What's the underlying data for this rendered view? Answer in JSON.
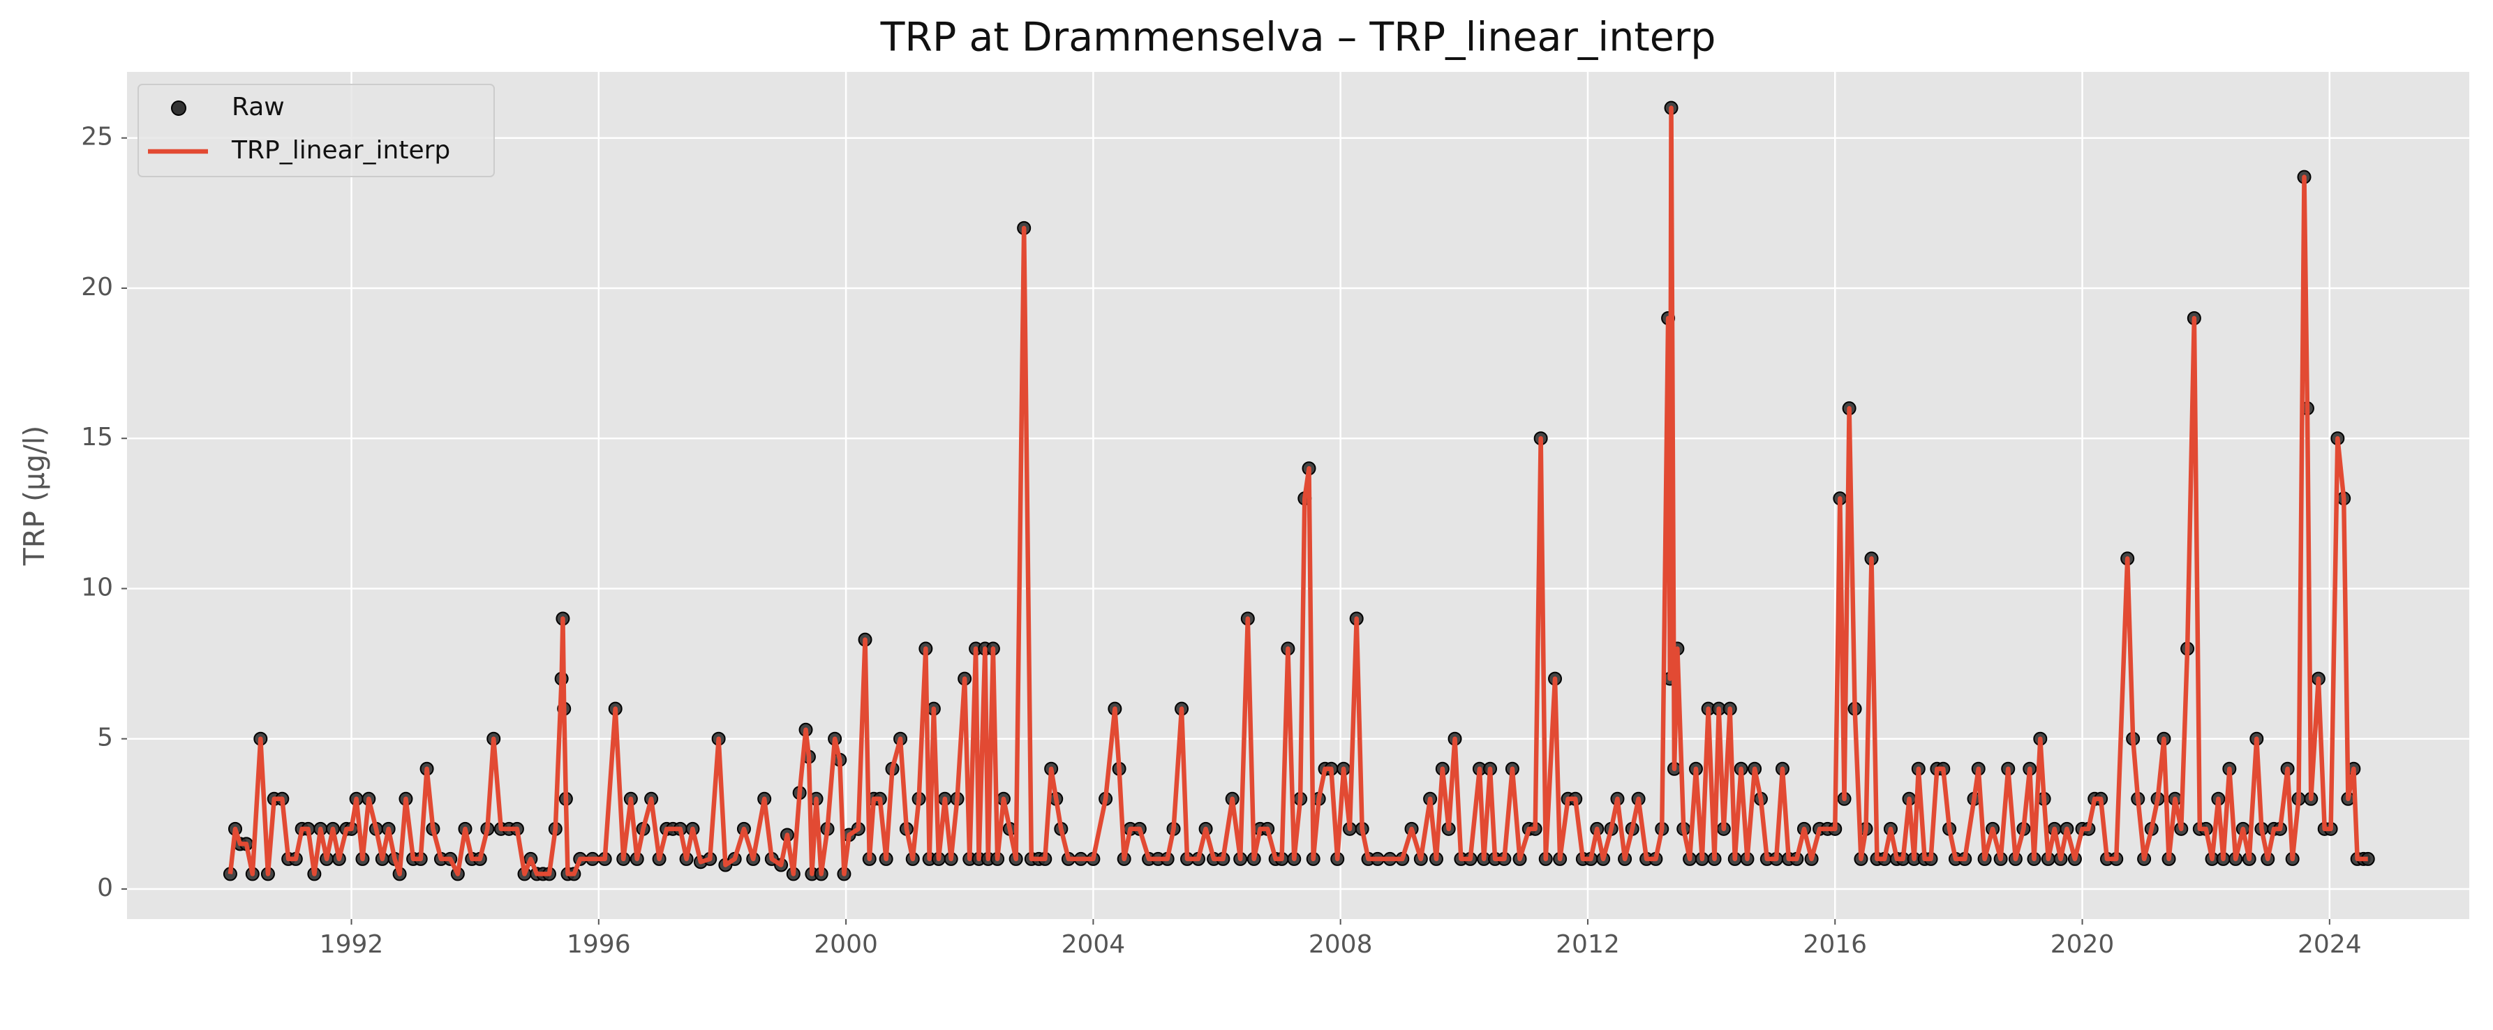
{
  "chart_data": {
    "type": "line",
    "title": "TRP at Drammenselva – TRP_linear_interp",
    "y_label": "TRP (µg/l)",
    "xlim": [
      1988.37,
      2026.26
    ],
    "xticks": [
      1992,
      1996,
      2000,
      2004,
      2008,
      2012,
      2016,
      2020,
      2024
    ],
    "ylim": [
      -1.0,
      27.2
    ],
    "yticks": [
      0,
      5,
      10,
      15,
      20,
      25
    ],
    "grid": true,
    "legend": "upper left",
    "x": [
      1990.04,
      1990.12,
      1990.2,
      1990.3,
      1990.4,
      1990.53,
      1990.65,
      1990.75,
      1990.88,
      1990.98,
      1991.1,
      1991.2,
      1991.3,
      1991.4,
      1991.5,
      1991.6,
      1991.7,
      1991.8,
      1991.92,
      1992.0,
      1992.08,
      1992.18,
      1992.28,
      1992.4,
      1992.5,
      1992.6,
      1992.7,
      1992.78,
      1992.88,
      1993.0,
      1993.12,
      1993.22,
      1993.32,
      1993.45,
      1993.6,
      1993.72,
      1993.84,
      1993.95,
      1994.08,
      1994.2,
      1994.3,
      1994.42,
      1994.55,
      1994.68,
      1994.8,
      1994.9,
      1995.0,
      1995.1,
      1995.2,
      1995.3,
      1995.4,
      1995.42,
      1995.44,
      1995.47,
      1995.5,
      1995.6,
      1995.7,
      1995.9,
      1996.1,
      1996.27,
      1996.4,
      1996.52,
      1996.62,
      1996.72,
      1996.85,
      1996.98,
      1997.1,
      1997.2,
      1997.32,
      1997.42,
      1997.52,
      1997.65,
      1997.8,
      1997.94,
      1998.05,
      1998.2,
      1998.35,
      1998.5,
      1998.68,
      1998.8,
      1998.95,
      1999.05,
      1999.15,
      1999.25,
      1999.35,
      1999.4,
      1999.45,
      1999.52,
      1999.6,
      1999.7,
      1999.82,
      1999.9,
      1999.97,
      2000.05,
      2000.2,
      2000.31,
      2000.38,
      2000.45,
      2000.55,
      2000.65,
      2000.75,
      2000.88,
      2000.98,
      2001.08,
      2001.18,
      2001.29,
      2001.35,
      2001.42,
      2001.5,
      2001.6,
      2001.7,
      2001.8,
      2001.92,
      2002.0,
      2002.1,
      2002.15,
      2002.25,
      2002.3,
      2002.38,
      2002.45,
      2002.55,
      2002.65,
      2002.75,
      2002.88,
      2003.0,
      2003.12,
      2003.22,
      2003.32,
      2003.4,
      2003.48,
      2003.6,
      2003.8,
      2004.0,
      2004.2,
      2004.35,
      2004.42,
      2004.5,
      2004.6,
      2004.75,
      2004.9,
      2005.05,
      2005.2,
      2005.3,
      2005.43,
      2005.52,
      2005.7,
      2005.82,
      2005.95,
      2006.1,
      2006.25,
      2006.38,
      2006.5,
      2006.6,
      2006.7,
      2006.82,
      2006.95,
      2007.05,
      2007.15,
      2007.25,
      2007.35,
      2007.42,
      2007.49,
      2007.56,
      2007.65,
      2007.75,
      2007.85,
      2007.95,
      2008.05,
      2008.15,
      2008.26,
      2008.35,
      2008.45,
      2008.6,
      2008.8,
      2009.0,
      2009.15,
      2009.3,
      2009.45,
      2009.55,
      2009.65,
      2009.75,
      2009.85,
      2009.95,
      2010.1,
      2010.25,
      2010.32,
      2010.42,
      2010.5,
      2010.65,
      2010.78,
      2010.9,
      2011.05,
      2011.15,
      2011.24,
      2011.32,
      2011.47,
      2011.55,
      2011.68,
      2011.8,
      2011.92,
      2012.05,
      2012.15,
      2012.25,
      2012.38,
      2012.48,
      2012.6,
      2012.72,
      2012.82,
      2012.95,
      2013.1,
      2013.2,
      2013.3,
      2013.33,
      2013.35,
      2013.4,
      2013.45,
      2013.55,
      2013.65,
      2013.75,
      2013.85,
      2013.95,
      2014.05,
      2014.12,
      2014.2,
      2014.3,
      2014.38,
      2014.48,
      2014.58,
      2014.7,
      2014.8,
      2014.9,
      2015.05,
      2015.15,
      2015.25,
      2015.38,
      2015.5,
      2015.62,
      2015.75,
      2015.88,
      2016.0,
      2016.08,
      2016.15,
      2016.23,
      2016.32,
      2016.42,
      2016.5,
      2016.59,
      2016.68,
      2016.8,
      2016.9,
      2017.0,
      2017.1,
      2017.2,
      2017.28,
      2017.35,
      2017.45,
      2017.55,
      2017.65,
      2017.75,
      2017.85,
      2017.95,
      2018.1,
      2018.25,
      2018.32,
      2018.42,
      2018.55,
      2018.68,
      2018.8,
      2018.92,
      2019.05,
      2019.15,
      2019.22,
      2019.32,
      2019.38,
      2019.45,
      2019.55,
      2019.65,
      2019.75,
      2019.88,
      2020.0,
      2020.1,
      2020.2,
      2020.3,
      2020.4,
      2020.55,
      2020.73,
      2020.82,
      2020.9,
      2021.0,
      2021.12,
      2021.22,
      2021.32,
      2021.4,
      2021.5,
      2021.6,
      2021.7,
      2021.81,
      2021.9,
      2022.0,
      2022.1,
      2022.2,
      2022.28,
      2022.38,
      2022.48,
      2022.6,
      2022.7,
      2022.82,
      2022.9,
      2023.0,
      2023.1,
      2023.2,
      2023.32,
      2023.4,
      2023.5,
      2023.59,
      2023.64,
      2023.7,
      2023.82,
      2023.92,
      2024.02,
      2024.13,
      2024.23,
      2024.3,
      2024.39,
      2024.45,
      2024.55,
      2024.62
    ],
    "series": [
      {
        "name": "Raw",
        "kind": "scatter",
        "color": "#333333",
        "values": [
          0.5,
          2,
          1.5,
          1.5,
          0.5,
          5,
          0.5,
          3,
          3,
          1,
          1,
          2,
          2,
          0.5,
          2,
          1,
          2,
          1,
          2,
          2,
          3,
          1,
          3,
          2,
          1,
          2,
          1,
          0.5,
          3,
          1,
          1,
          4,
          2,
          1,
          1,
          0.5,
          2,
          1,
          1,
          2,
          5,
          2,
          2,
          2,
          0.5,
          1,
          0.5,
          0.5,
          0.5,
          2,
          7,
          9,
          6,
          3,
          0.5,
          0.5,
          1,
          1,
          1,
          6,
          1,
          3,
          1,
          2,
          3,
          1,
          2,
          2,
          2,
          1,
          2,
          0.9,
          1,
          5,
          0.8,
          1,
          2,
          1,
          3,
          1,
          0.8,
          1.8,
          0.5,
          3.2,
          5.3,
          4.4,
          0.5,
          3,
          0.5,
          2,
          5,
          4.3,
          0.5,
          1.8,
          2,
          8.3,
          1,
          3,
          3,
          1,
          4,
          5,
          2,
          1,
          3,
          8,
          1,
          6,
          1,
          3,
          1,
          3,
          7,
          1,
          8,
          1,
          8,
          1,
          8,
          1,
          3,
          2,
          1,
          22,
          1,
          1,
          1,
          4,
          3,
          2,
          1,
          1,
          1,
          3,
          6,
          4,
          1,
          2,
          2,
          1,
          1,
          1,
          2,
          6,
          1,
          1,
          2,
          1,
          1,
          3,
          1,
          9,
          1,
          2,
          2,
          1,
          1,
          8,
          1,
          3,
          13,
          14,
          1,
          3,
          4,
          4,
          1,
          4,
          2,
          9,
          2,
          1,
          1,
          1,
          1,
          2,
          1,
          3,
          1,
          4,
          2,
          5,
          1,
          1,
          4,
          1,
          4,
          1,
          1,
          4,
          1,
          2,
          2,
          15,
          1,
          7,
          1,
          3,
          3,
          1,
          1,
          2,
          1,
          2,
          3,
          1,
          2,
          3,
          1,
          1,
          2,
          19,
          7,
          26,
          4,
          8,
          2,
          1,
          4,
          1,
          6,
          1,
          6,
          2,
          6,
          1,
          4,
          1,
          4,
          3,
          1,
          1,
          4,
          1,
          1,
          2,
          1,
          2,
          2,
          2,
          13,
          3,
          16,
          6,
          1,
          2,
          11,
          1,
          1,
          2,
          1,
          1,
          3,
          1,
          4,
          1,
          1,
          4,
          4,
          2,
          1,
          1,
          3,
          4,
          1,
          2,
          1,
          4,
          1,
          2,
          4,
          1,
          5,
          3,
          1,
          2,
          1,
          2,
          1,
          2,
          2,
          3,
          3,
          1,
          1,
          11,
          5,
          3,
          1,
          2,
          3,
          5,
          1,
          3,
          2,
          8,
          19,
          2,
          2,
          1,
          3,
          1,
          4,
          1,
          2,
          1,
          5,
          2,
          1,
          2,
          2,
          4,
          1,
          3,
          23.7,
          16,
          3,
          7,
          2,
          2,
          15,
          13,
          3,
          4,
          1,
          1,
          1
        ]
      },
      {
        "name": "TRP_linear_interp",
        "kind": "line",
        "color": "#e24a33",
        "values": [
          0.5,
          2,
          1.5,
          1.5,
          0.5,
          5,
          0.5,
          3,
          3,
          1,
          1,
          2,
          2,
          0.5,
          2,
          1,
          2,
          1,
          2,
          2,
          3,
          1,
          3,
          2,
          1,
          2,
          1,
          0.5,
          3,
          1,
          1,
          4,
          2,
          1,
          1,
          0.5,
          2,
          1,
          1,
          2,
          5,
          2,
          2,
          2,
          0.5,
          1,
          0.5,
          0.5,
          0.5,
          2,
          7,
          9,
          6,
          3,
          0.5,
          0.5,
          1,
          1,
          1,
          6,
          1,
          3,
          1,
          2,
          3,
          1,
          2,
          2,
          2,
          1,
          2,
          0.9,
          1,
          5,
          0.8,
          1,
          2,
          1,
          3,
          1,
          0.8,
          1.8,
          0.5,
          3.2,
          5.3,
          4.4,
          0.5,
          3,
          0.5,
          2,
          5,
          4.3,
          0.5,
          1.8,
          2,
          8.3,
          1,
          3,
          3,
          1,
          4,
          5,
          2,
          1,
          3,
          8,
          1,
          6,
          1,
          3,
          1,
          3,
          7,
          1,
          8,
          1,
          8,
          1,
          8,
          1,
          3,
          2,
          1,
          22,
          1,
          1,
          1,
          4,
          3,
          2,
          1,
          1,
          1,
          3,
          6,
          4,
          1,
          2,
          2,
          1,
          1,
          1,
          2,
          6,
          1,
          1,
          2,
          1,
          1,
          3,
          1,
          9,
          1,
          2,
          2,
          1,
          1,
          8,
          1,
          3,
          13,
          14,
          1,
          3,
          4,
          4,
          1,
          4,
          2,
          9,
          2,
          1,
          1,
          1,
          1,
          2,
          1,
          3,
          1,
          4,
          2,
          5,
          1,
          1,
          4,
          1,
          4,
          1,
          1,
          4,
          1,
          2,
          2,
          15,
          1,
          7,
          1,
          3,
          3,
          1,
          1,
          2,
          1,
          2,
          3,
          1,
          2,
          3,
          1,
          1,
          2,
          19,
          7,
          26,
          4,
          8,
          2,
          1,
          4,
          1,
          6,
          1,
          6,
          2,
          6,
          1,
          4,
          1,
          4,
          3,
          1,
          1,
          4,
          1,
          1,
          2,
          1,
          2,
          2,
          2,
          13,
          3,
          16,
          6,
          1,
          2,
          11,
          1,
          1,
          2,
          1,
          1,
          3,
          1,
          4,
          1,
          1,
          4,
          4,
          2,
          1,
          1,
          3,
          4,
          1,
          2,
          1,
          4,
          1,
          2,
          4,
          1,
          5,
          3,
          1,
          2,
          1,
          2,
          1,
          2,
          2,
          3,
          3,
          1,
          1,
          11,
          5,
          3,
          1,
          2,
          3,
          5,
          1,
          3,
          2,
          8,
          19,
          2,
          2,
          1,
          3,
          1,
          4,
          1,
          2,
          1,
          5,
          2,
          1,
          2,
          2,
          4,
          1,
          3,
          23.7,
          16,
          3,
          7,
          2,
          2,
          15,
          13,
          3,
          4,
          1,
          1,
          1
        ]
      }
    ]
  }
}
